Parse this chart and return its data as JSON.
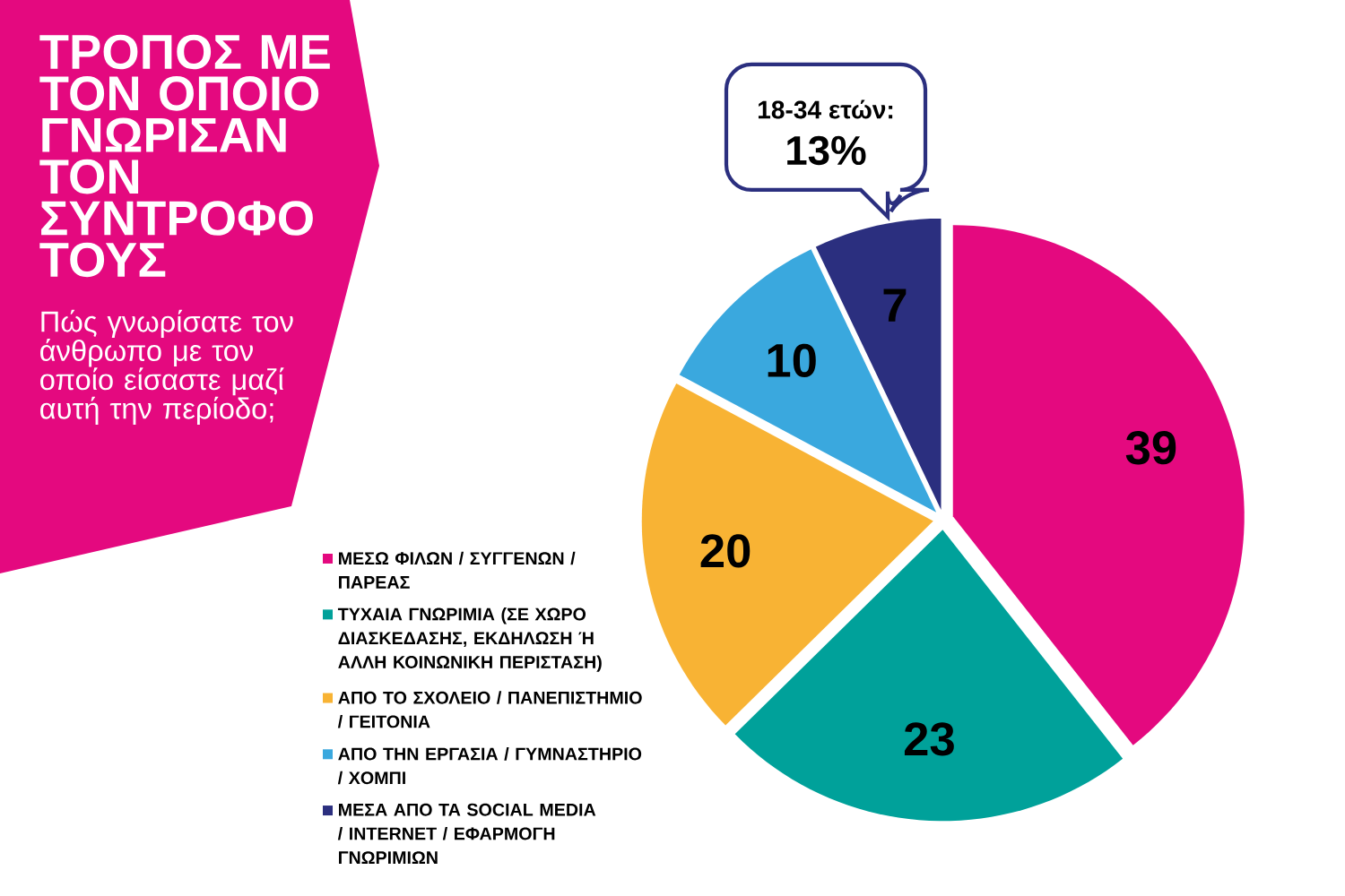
{
  "chart_data": {
    "type": "pie",
    "title": "ΤΡΟΠΟΣ ΜΕ ΤΟΝ ΟΠΟΙΟ ΓΝΩΡΙΣΑΝ ΤΟΝ ΣΥΝΤΡΟΦΟ ΤΟΥΣ",
    "subtitle": "Πώς γνωρίσατε τον άνθρωπο με τον οποίο είσαστε μαζί αυτή την περίοδο;",
    "categories": [
      "ΜΕΣΩ ΦΙΛΩΝ / ΣΥΓΓΕΝΩΝ / ΠΑΡΕΑΣ",
      "ΤΥΧΑΙΑ ΓΝΩΡΙΜΙΑ (ΣΕ ΧΩΡΟ ΔΙΑΣΚΕΔΑΣΗΣ, ΕΚΔΗΛΩΣΗ Ή ΑΛΛΗ ΚΟΙΝΩΝΙΚΗ ΠΕΡΙΣΤΑΣΗ)",
      "ΑΠΟ ΤΟ ΣΧΟΛΕΙΟ / ΠΑΝΕΠΙΣΤΗΜΙΟ / ΓΕΙΤΟΝΙΑ",
      "ΑΠΟ ΤΗΝ ΕΡΓΑΣΙΑ / ΓΥΜΝΑΣΤΗΡΙΟ / ΧΟΜΠΙ",
      "ΜΕΣΑ ΑΠΟ ΤΑ SOCIAL MEDIA / INTERNET / ΕΦΑΡΜΟΓΗ ΓΝΩΡΙΜΙΩΝ"
    ],
    "values": [
      39,
      23,
      20,
      10,
      7
    ],
    "colors": [
      "#e4097f",
      "#00a19a",
      "#f8b334",
      "#3aa8de",
      "#2b2f7f"
    ],
    "data_labels": true,
    "legend": "left",
    "annotations": [
      "18-34 ετών:",
      "13%"
    ]
  }
}
